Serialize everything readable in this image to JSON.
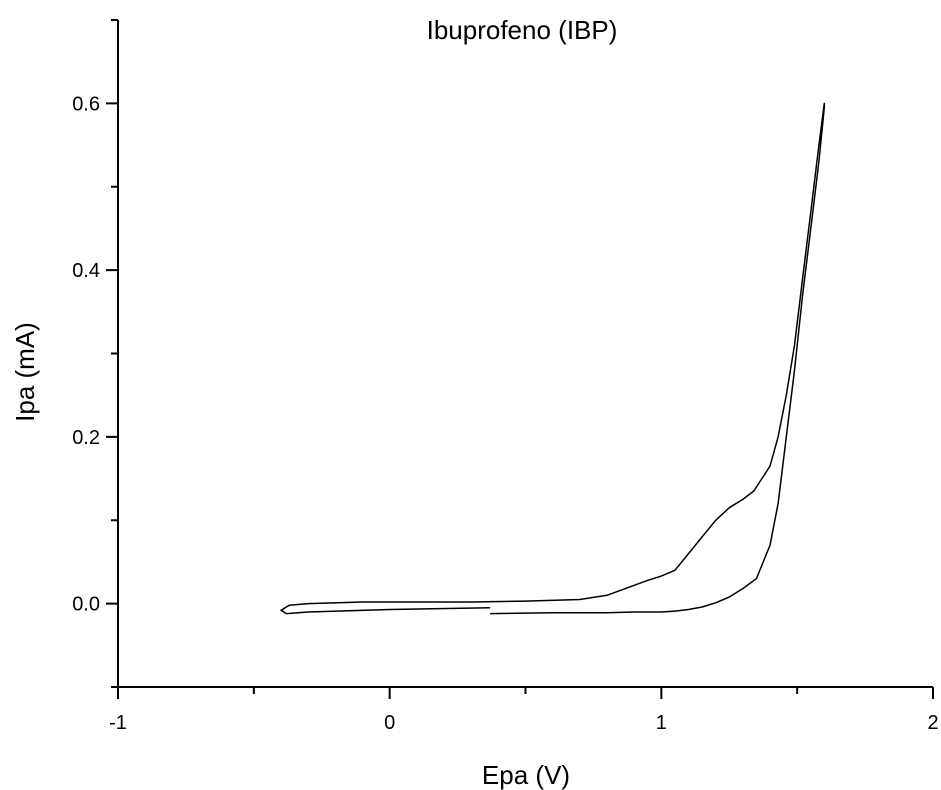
{
  "chart_data": {
    "type": "line",
    "title": "Ibuprofeno (IBP)",
    "xlabel": "Epa (V)",
    "ylabel": "Ipa (mA)",
    "xlim": [
      -1,
      2
    ],
    "ylim": [
      -0.1,
      0.7
    ],
    "x_ticks": [
      "-1",
      "0",
      "1",
      "2"
    ],
    "y_ticks": [
      "0.0",
      "0.2",
      "0.4",
      "0.6"
    ],
    "grid": false,
    "legend": "none",
    "line_color": "#000000",
    "series": [
      {
        "x": [
          0.37,
          0.6,
          0.8,
          0.9,
          1.0,
          1.05,
          1.1,
          1.15,
          1.2,
          1.25,
          1.3,
          1.35,
          1.4,
          1.43,
          1.46,
          1.49,
          1.52,
          1.55,
          1.58,
          1.6,
          1.6,
          1.58,
          1.55,
          1.52,
          1.49,
          1.46,
          1.43,
          1.4,
          1.37,
          1.34,
          1.3,
          1.25,
          1.2,
          1.15,
          1.1,
          1.05,
          1.0,
          0.95,
          0.9,
          0.85,
          0.8,
          0.7,
          0.5,
          0.3,
          0.1,
          -0.1,
          -0.3,
          -0.37,
          -0.4,
          -0.38,
          -0.3,
          0.0,
          0.37
        ],
        "y": [
          -0.012,
          -0.011,
          -0.011,
          -0.01,
          -0.01,
          -0.009,
          -0.007,
          -0.004,
          0.001,
          0.008,
          0.018,
          0.03,
          0.07,
          0.12,
          0.2,
          0.28,
          0.37,
          0.45,
          0.53,
          0.595,
          0.6,
          0.55,
          0.47,
          0.39,
          0.31,
          0.25,
          0.2,
          0.165,
          0.15,
          0.135,
          0.125,
          0.115,
          0.1,
          0.08,
          0.06,
          0.04,
          0.033,
          0.028,
          0.022,
          0.016,
          0.01,
          0.005,
          0.003,
          0.002,
          0.002,
          0.002,
          0.0,
          -0.002,
          -0.008,
          -0.012,
          -0.01,
          -0.007,
          -0.005
        ]
      }
    ]
  }
}
